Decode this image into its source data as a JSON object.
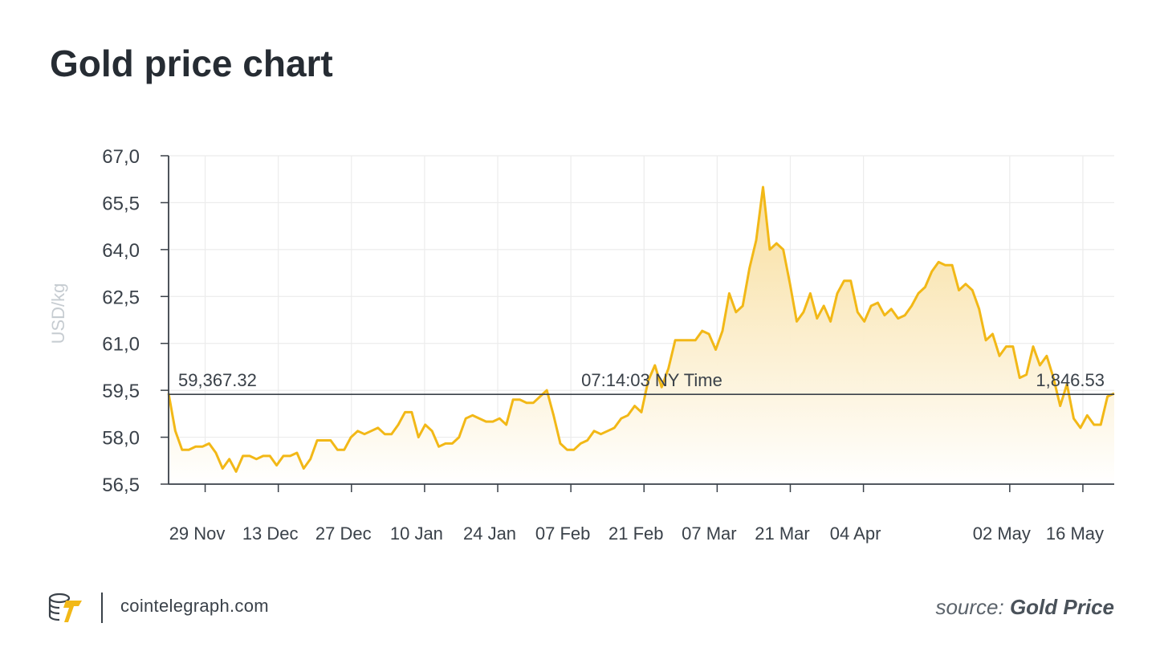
{
  "header": {
    "title": "Gold price chart"
  },
  "footer": {
    "site": "cointelegraph.com",
    "source_prefix": "source:",
    "source_name": "Gold Price",
    "logo_icon": "cointelegraph-logo-icon"
  },
  "colors": {
    "line": "#f2b817",
    "area_top": "#f8dd9a",
    "area_bottom": "#ffffff",
    "grid": "#ececec",
    "axis": "#3a4149",
    "reference_line": "#3a4149"
  },
  "chart_data": {
    "type": "area",
    "title": "Gold price chart",
    "ylabel": "USD/kg",
    "xlabel": "",
    "ylim": [
      56.5,
      67.0
    ],
    "yticks": [
      56.5,
      58.0,
      59.5,
      61.0,
      62.5,
      64.0,
      65.5,
      67.0
    ],
    "ytick_labels": [
      "56,5",
      "58,0",
      "59,5",
      "61,0",
      "62,5",
      "64,0",
      "65,5",
      "67,0"
    ],
    "x_start": "2021-11-22",
    "x_end": "2022-05-22",
    "xticks": [
      "2021-11-29",
      "2021-12-13",
      "2021-12-27",
      "2022-01-10",
      "2022-01-24",
      "2022-02-07",
      "2022-02-21",
      "2022-03-07",
      "2022-03-21",
      "2022-04-04",
      "2022-05-02",
      "2022-05-16"
    ],
    "xtick_labels": [
      "29 Nov",
      "13 Dec",
      "27 Dec",
      "10 Jan",
      "24 Jan",
      "07 Feb",
      "21 Feb",
      "07 Mar",
      "21 Mar",
      "04 Apr",
      "02 May",
      "16 May"
    ],
    "grid": true,
    "reference_line": {
      "y": 59.37,
      "left_label": "59,367.32",
      "center_label": "07:14:03 NY Time",
      "right_label": "1,846.53"
    },
    "series": [
      {
        "values": [
          59.4,
          58.2,
          57.6,
          57.6,
          57.7,
          57.7,
          57.8,
          57.5,
          57.0,
          57.3,
          56.9,
          57.4,
          57.4,
          57.3,
          57.4,
          57.4,
          57.1,
          57.4,
          57.4,
          57.5,
          57.0,
          57.3,
          57.9,
          57.9,
          57.9,
          57.6,
          57.6,
          58.0,
          58.2,
          58.1,
          58.2,
          58.3,
          58.1,
          58.1,
          58.4,
          58.8,
          58.8,
          58.0,
          58.4,
          58.2,
          57.7,
          57.8,
          57.8,
          58.0,
          58.6,
          58.7,
          58.6,
          58.5,
          58.5,
          58.6,
          58.4,
          59.2,
          59.2,
          59.1,
          59.1,
          59.3,
          59.5,
          58.7,
          57.8,
          57.6,
          57.6,
          57.8,
          57.9,
          58.2,
          58.1,
          58.2,
          58.3,
          58.6,
          58.7,
          59.0,
          58.8,
          59.8,
          60.3,
          59.6,
          60.2,
          61.1,
          61.1,
          61.1,
          61.1,
          61.4,
          61.3,
          60.8,
          61.4,
          62.6,
          62.0,
          62.2,
          63.4,
          64.3,
          66.0,
          64.0,
          64.2,
          64.0,
          62.9,
          61.7,
          62.0,
          62.6,
          61.8,
          62.2,
          61.7,
          62.6,
          63.0,
          63.0,
          62.0,
          61.7,
          62.2,
          62.3,
          61.9,
          62.1,
          61.8,
          61.9,
          62.2,
          62.6,
          62.8,
          63.3,
          63.6,
          63.5,
          63.5,
          62.7,
          62.9,
          62.7,
          62.1,
          61.1,
          61.3,
          60.6,
          60.9,
          60.9,
          59.9,
          60.0,
          60.9,
          60.3,
          60.6,
          59.9,
          59.0,
          59.7,
          58.6,
          58.3,
          58.7,
          58.4,
          58.4,
          59.3,
          59.4
        ]
      }
    ]
  }
}
